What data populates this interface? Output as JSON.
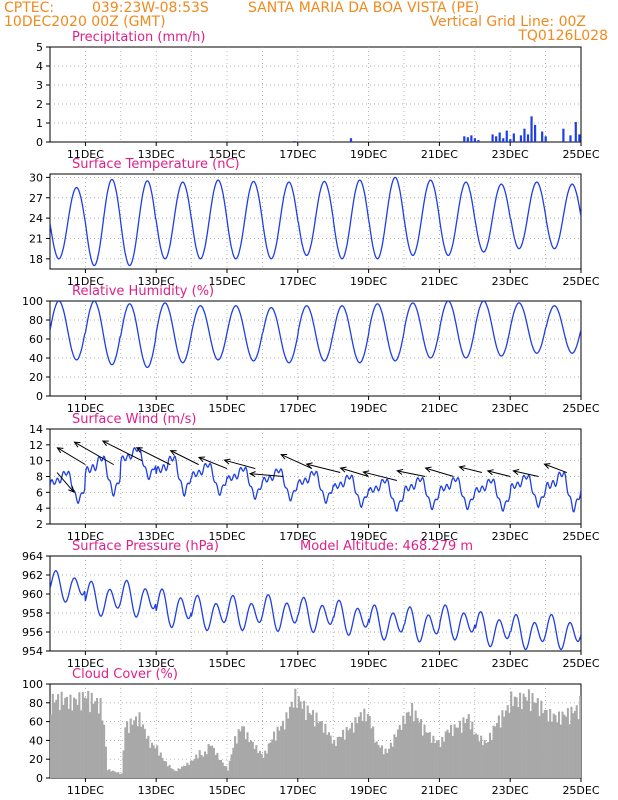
{
  "header": {
    "source": "CPTEC:",
    "coords": "039:23W-08:53S",
    "location": "SANTA MARIA DA BOA VISTA (PE)",
    "datetime": "10DEC2020 00Z (GMT)",
    "grid_note": "Vertical Grid Line: 00Z",
    "code": "TQ0126L028"
  },
  "colors": {
    "header": "#f08a1e",
    "title": "#e0208a",
    "series": "#1f3fe6",
    "cloud": "#a8a8a8",
    "wind_arrow": "#000000",
    "grid": "#9a9a9a"
  },
  "chart_data": [
    {
      "id": "precip",
      "type": "bar",
      "title": "Precipitation (mm/h)",
      "ylim": [
        0,
        5
      ],
      "yticks": [
        0,
        1,
        2,
        3,
        4,
        5
      ],
      "xlim": [
        0,
        15
      ],
      "xticks": [
        1,
        3,
        5,
        7,
        9,
        11,
        13,
        15
      ],
      "xticklabels": [
        "11DEC",
        "13DEC",
        "15DEC",
        "17DEC",
        "19DEC",
        "21DEC",
        "23DEC",
        "25DEC"
      ],
      "x": [
        6.9,
        8.5,
        11.7,
        11.8,
        11.9,
        12.0,
        12.1,
        12.5,
        12.6,
        12.7,
        12.8,
        12.9,
        13.0,
        13.1,
        13.3,
        13.4,
        13.5,
        13.6,
        13.7,
        13.9,
        14.0,
        14.5,
        14.7,
        14.85,
        14.95
      ],
      "values": [
        0.05,
        0.2,
        0.3,
        0.25,
        0.35,
        0.2,
        0.1,
        0.4,
        0.3,
        0.5,
        0.2,
        0.6,
        0.15,
        0.45,
        0.35,
        0.7,
        0.4,
        1.35,
        0.9,
        0.55,
        0.3,
        0.7,
        0.35,
        1.05,
        0.4
      ]
    },
    {
      "id": "temp",
      "type": "line",
      "title": "Surface Temperature (nC)",
      "ylim": [
        16.5,
        30.5
      ],
      "yticks": [
        18,
        21,
        24,
        27,
        30
      ],
      "xlim": [
        0,
        15
      ],
      "xticks": [
        1,
        3,
        5,
        7,
        9,
        11,
        13,
        15
      ],
      "xticklabels": [
        "11DEC",
        "13DEC",
        "15DEC",
        "17DEC",
        "19DEC",
        "21DEC",
        "23DEC",
        "25DEC"
      ],
      "daily_min": [
        18.0,
        17.0,
        17.0,
        18.0,
        18.0,
        18.0,
        18.0,
        18.5,
        18.0,
        18.0,
        18.5,
        18.5,
        19.0,
        19.5,
        19.5
      ],
      "daily_max": [
        28.5,
        29.7,
        29.5,
        29.3,
        29.6,
        29.4,
        29.3,
        29.4,
        29.6,
        30.0,
        29.6,
        29.3,
        29.0,
        29.3,
        29.0
      ]
    },
    {
      "id": "rh",
      "type": "line",
      "title": "Relative Humidity (%)",
      "ylim": [
        0,
        100
      ],
      "yticks": [
        0,
        20,
        40,
        60,
        80,
        100
      ],
      "xlim": [
        0,
        15
      ],
      "xticks": [
        1,
        3,
        5,
        7,
        9,
        11,
        13,
        15
      ],
      "xticklabels": [
        "11DEC",
        "13DEC",
        "15DEC",
        "17DEC",
        "19DEC",
        "21DEC",
        "23DEC",
        "25DEC"
      ],
      "daily_min": [
        38,
        33,
        30,
        35,
        38,
        37,
        35,
        37,
        35,
        37,
        40,
        40,
        42,
        45,
        45
      ],
      "daily_max": [
        100,
        100,
        97,
        98,
        95,
        95,
        93,
        95,
        95,
        97,
        98,
        100,
        100,
        98,
        95
      ]
    },
    {
      "id": "wind",
      "type": "line",
      "title": "Surface Wind (m/s)",
      "ylim": [
        2,
        14
      ],
      "yticks": [
        2,
        4,
        6,
        8,
        10,
        12,
        14
      ],
      "xlim": [
        0,
        15
      ],
      "xticks": [
        1,
        3,
        5,
        7,
        9,
        11,
        13,
        15
      ],
      "xticklabels": [
        "11DEC",
        "13DEC",
        "15DEC",
        "17DEC",
        "19DEC",
        "21DEC",
        "23DEC",
        "25DEC"
      ],
      "daily_mean": [
        7.0,
        8.5,
        10.0,
        8.5,
        8.0,
        7.5,
        7.3,
        7.0,
        6.5,
        6.0,
        6.2,
        6.2,
        6.0,
        6.5,
        6.5
      ],
      "daily_amp": [
        2.0,
        2.5,
        2.0,
        2.5,
        2.0,
        2.0,
        2.0,
        2.0,
        2.0,
        2.0,
        2.0,
        2.0,
        2.0,
        2.0,
        2.5
      ],
      "arrow_x": [
        0.2,
        1.0,
        1.8,
        2.6,
        3.4,
        4.2,
        5.0,
        5.8,
        6.6,
        7.4,
        8.2,
        9.0,
        9.8,
        10.6,
        11.4,
        12.2,
        13.0,
        13.8,
        14.6
      ],
      "arrow_y": [
        8.5,
        9.5,
        9.5,
        10.0,
        9.5,
        9.5,
        9.0,
        9.0,
        8.0,
        9.0,
        8.5,
        8.0,
        7.5,
        8.0,
        8.0,
        8.5,
        8.0,
        8.0,
        8.5
      ],
      "arrow_u": [
        0.6,
        -1.0,
        -1.4,
        -1.4,
        -1.2,
        -1.0,
        -1.0,
        -1.1,
        -1.2,
        -1.1,
        -1.2,
        -1.0,
        -1.2,
        -1.0,
        -1.0,
        -0.8,
        -0.8,
        -0.9,
        -0.8
      ],
      "arrow_v": [
        -0.7,
        0.6,
        0.8,
        0.7,
        0.6,
        0.5,
        0.4,
        0.3,
        0.1,
        0.5,
        0.3,
        0.3,
        0.3,
        0.2,
        0.3,
        0.2,
        0.2,
        0.2,
        0.3
      ]
    },
    {
      "id": "pressure",
      "type": "line",
      "title": "Surface Pressure (hPa)",
      "subtitle": "Model Altitude: 468.279 m",
      "ylim": [
        954,
        964
      ],
      "yticks": [
        954,
        956,
        958,
        960,
        962,
        964
      ],
      "xlim": [
        0,
        15
      ],
      "xticks": [
        1,
        3,
        5,
        7,
        9,
        11,
        13,
        15
      ],
      "xticklabels": [
        "11DEC",
        "13DEC",
        "15DEC",
        "17DEC",
        "19DEC",
        "21DEC",
        "23DEC",
        "25DEC"
      ],
      "daily_mean": [
        960.8,
        959.5,
        959.5,
        958.5,
        958.0,
        958.0,
        958.0,
        957.8,
        957.5,
        957.0,
        956.8,
        957.0,
        956.3,
        956.0,
        956.0
      ],
      "daily_amp": [
        1.8,
        2.0,
        2.1,
        2.2,
        2.0,
        2.0,
        2.1,
        2.0,
        2.0,
        2.0,
        2.0,
        2.0,
        2.0,
        2.0,
        2.0
      ]
    },
    {
      "id": "cloud",
      "type": "area",
      "title": "Cloud Cover (%)",
      "ylim": [
        0,
        100
      ],
      "yticks": [
        0,
        20,
        40,
        60,
        80,
        100
      ],
      "xlim": [
        0,
        15
      ],
      "xticks": [
        1,
        3,
        5,
        7,
        9,
        11,
        13,
        15
      ],
      "xticklabels": [
        "11DEC",
        "13DEC",
        "15DEC",
        "17DEC",
        "19DEC",
        "21DEC",
        "23DEC",
        "25DEC"
      ],
      "x": [
        0,
        0.3,
        0.6,
        1.0,
        1.4,
        1.5,
        1.6,
        2.0,
        2.1,
        2.5,
        2.8,
        3.0,
        3.2,
        3.5,
        3.8,
        4.0,
        4.2,
        4.3,
        4.5,
        4.8,
        5.0,
        5.2,
        5.4,
        5.6,
        5.8,
        6.0,
        6.3,
        6.6,
        6.9,
        7.0,
        7.2,
        7.5,
        7.8,
        8.0,
        8.2,
        8.5,
        8.8,
        9.0,
        9.2,
        9.5,
        9.8,
        10.0,
        10.2,
        10.5,
        10.8,
        11.0,
        11.2,
        11.5,
        11.8,
        12.0,
        12.3,
        12.6,
        12.9,
        13.0,
        13.2,
        13.5,
        13.8,
        14.0,
        14.3,
        14.6,
        14.9,
        15.0
      ],
      "values": [
        90,
        92,
        88,
        95,
        85,
        60,
        10,
        5,
        60,
        70,
        40,
        35,
        20,
        8,
        15,
        20,
        30,
        25,
        40,
        20,
        10,
        45,
        60,
        45,
        35,
        25,
        50,
        65,
        95,
        90,
        80,
        70,
        55,
        40,
        50,
        60,
        75,
        70,
        40,
        30,
        55,
        70,
        80,
        60,
        45,
        40,
        55,
        60,
        70,
        50,
        40,
        65,
        80,
        92,
        90,
        95,
        85,
        75,
        70,
        75,
        80,
        95
      ]
    }
  ]
}
